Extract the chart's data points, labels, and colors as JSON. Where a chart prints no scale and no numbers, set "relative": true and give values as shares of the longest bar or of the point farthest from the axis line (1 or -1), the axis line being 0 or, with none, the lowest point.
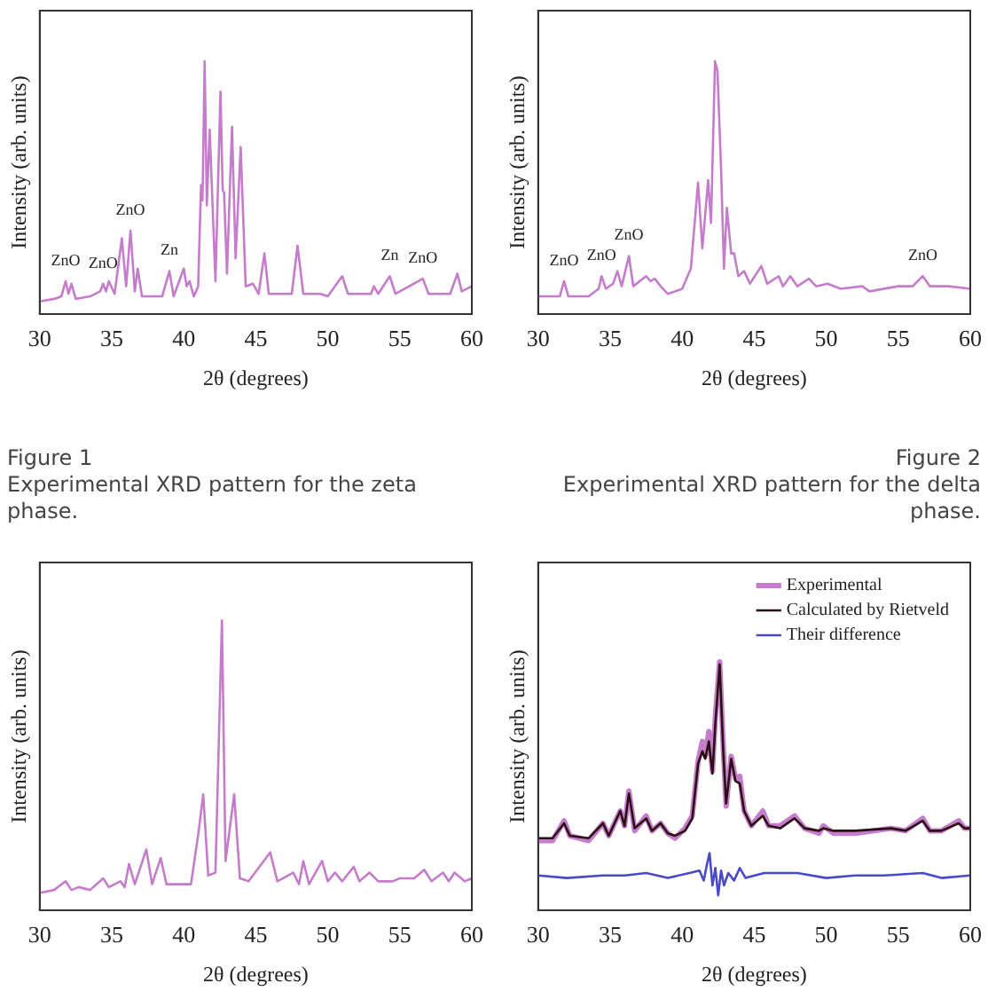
{
  "chart_data": [
    {
      "type": "line",
      "relative": true,
      "xlabel": "2θ (degrees)",
      "ylabel": "Intensity (arb. units)",
      "xlim": [
        30,
        60
      ],
      "xticks": [
        30,
        35,
        40,
        45,
        50,
        55,
        60
      ],
      "grid": false,
      "legend": false,
      "annotations": [
        "Figure 1",
        "Experimental XRD pattern for the zeta phase.",
        {
          "text": "ZnO",
          "x": 31.8,
          "y": 0.13
        },
        {
          "text": "ZnO",
          "x": 34.4,
          "y": 0.12
        },
        {
          "text": "ZnO",
          "x": 36.3,
          "y": 0.33
        },
        {
          "text": "Zn",
          "x": 39.0,
          "y": 0.17
        },
        {
          "text": "Zn",
          "x": 54.3,
          "y": 0.15
        },
        {
          "text": "ZnO",
          "x": 56.6,
          "y": 0.14
        }
      ],
      "series": [
        {
          "color": "#c47ccb",
          "x": [
            30.0,
            31.0,
            31.5,
            31.8,
            32.0,
            32.2,
            32.5,
            33.5,
            34.2,
            34.4,
            34.6,
            34.8,
            35.2,
            35.7,
            36.0,
            36.3,
            36.6,
            36.8,
            37.1,
            38.5,
            39.0,
            39.3,
            40.0,
            40.2,
            40.4,
            40.7,
            41.0,
            41.2,
            41.3,
            41.45,
            41.6,
            41.8,
            42.0,
            42.2,
            42.55,
            42.7,
            42.8,
            43.0,
            43.35,
            43.6,
            43.95,
            44.3,
            44.8,
            45.2,
            45.6,
            45.9,
            47.5,
            47.9,
            48.3,
            49.5,
            50.0,
            51.0,
            51.4,
            53.0,
            53.2,
            53.5,
            54.3,
            54.7,
            56.6,
            57.0,
            58.5,
            59.0,
            59.3,
            60.0
          ],
          "values": [
            0.05,
            0.06,
            0.07,
            0.13,
            0.08,
            0.12,
            0.06,
            0.07,
            0.09,
            0.12,
            0.09,
            0.13,
            0.08,
            0.3,
            0.11,
            0.33,
            0.09,
            0.18,
            0.07,
            0.07,
            0.17,
            0.07,
            0.18,
            0.11,
            0.13,
            0.07,
            0.11,
            0.51,
            0.45,
            1.0,
            0.43,
            0.73,
            0.43,
            0.13,
            0.88,
            0.49,
            0.48,
            0.16,
            0.74,
            0.22,
            0.66,
            0.11,
            0.12,
            0.08,
            0.24,
            0.08,
            0.08,
            0.27,
            0.08,
            0.08,
            0.07,
            0.15,
            0.08,
            0.08,
            0.11,
            0.08,
            0.15,
            0.08,
            0.14,
            0.08,
            0.08,
            0.16,
            0.09,
            0.11
          ]
        }
      ]
    },
    {
      "type": "line",
      "relative": true,
      "xlabel": "2θ (degrees)",
      "ylabel": "Intensity (arb. units)",
      "xlim": [
        30,
        60
      ],
      "xticks": [
        30,
        35,
        40,
        45,
        50,
        55,
        60
      ],
      "grid": false,
      "legend": false,
      "annotations": [
        "Figure 2",
        "Experimental XRD pattern for the delta phase.",
        {
          "text": "ZnO",
          "x": 31.8,
          "y": 0.13
        },
        {
          "text": "ZnO",
          "x": 34.4,
          "y": 0.15
        },
        {
          "text": "ZnO",
          "x": 36.3,
          "y": 0.23
        },
        {
          "text": "ZnO",
          "x": 56.7,
          "y": 0.15
        }
      ],
      "series": [
        {
          "color": "#c47ccb",
          "x": [
            30.0,
            31.0,
            31.5,
            31.8,
            32.1,
            33.5,
            34.2,
            34.4,
            34.7,
            35.2,
            35.5,
            35.8,
            36.3,
            36.6,
            37.5,
            37.8,
            38.1,
            38.5,
            39.0,
            40.0,
            40.6,
            41.1,
            41.4,
            41.8,
            42.0,
            42.28,
            42.45,
            42.7,
            42.9,
            43.1,
            43.4,
            43.6,
            43.9,
            44.3,
            44.7,
            45.5,
            45.9,
            46.7,
            47.0,
            47.5,
            48.0,
            48.8,
            49.3,
            50.1,
            51.0,
            52.5,
            53.0,
            55.0,
            56.0,
            56.7,
            57.2,
            58.5,
            60.0
          ],
          "values": [
            0.07,
            0.07,
            0.07,
            0.13,
            0.07,
            0.07,
            0.1,
            0.15,
            0.1,
            0.12,
            0.17,
            0.11,
            0.23,
            0.11,
            0.15,
            0.13,
            0.14,
            0.11,
            0.08,
            0.1,
            0.18,
            0.52,
            0.26,
            0.53,
            0.36,
            1.0,
            0.96,
            0.57,
            0.18,
            0.42,
            0.24,
            0.24,
            0.15,
            0.17,
            0.12,
            0.19,
            0.12,
            0.15,
            0.11,
            0.15,
            0.11,
            0.14,
            0.11,
            0.12,
            0.1,
            0.11,
            0.09,
            0.11,
            0.11,
            0.15,
            0.11,
            0.11,
            0.1
          ]
        }
      ]
    },
    {
      "type": "line",
      "relative": true,
      "xlabel": "2θ (degrees)",
      "ylabel": "Intensity (arb. units)",
      "xlim": [
        30,
        60
      ],
      "xticks": [
        30,
        35,
        40,
        45,
        50,
        55,
        60
      ],
      "grid": false,
      "legend": false,
      "series": [
        {
          "color": "#c47ccb",
          "x": [
            30.0,
            31.0,
            31.8,
            32.2,
            32.7,
            33.5,
            34.4,
            34.8,
            35.6,
            35.9,
            36.2,
            36.6,
            37.4,
            37.8,
            38.4,
            38.8,
            40.5,
            41.0,
            41.35,
            41.7,
            42.2,
            42.65,
            42.9,
            43.5,
            43.9,
            44.5,
            46.0,
            46.5,
            47.6,
            48.0,
            48.3,
            48.7,
            49.6,
            50.0,
            50.5,
            51.0,
            51.8,
            52.2,
            52.9,
            53.5,
            54.5,
            55.0,
            56.0,
            56.7,
            57.2,
            58.0,
            58.4,
            58.8,
            59.5,
            60.0
          ],
          "values": [
            0.06,
            0.07,
            0.1,
            0.07,
            0.08,
            0.07,
            0.11,
            0.08,
            0.1,
            0.08,
            0.16,
            0.09,
            0.21,
            0.09,
            0.18,
            0.09,
            0.09,
            0.26,
            0.4,
            0.12,
            0.13,
            1.0,
            0.17,
            0.4,
            0.11,
            0.1,
            0.2,
            0.1,
            0.13,
            0.09,
            0.17,
            0.09,
            0.17,
            0.1,
            0.13,
            0.1,
            0.15,
            0.1,
            0.13,
            0.1,
            0.1,
            0.11,
            0.11,
            0.14,
            0.1,
            0.13,
            0.1,
            0.13,
            0.1,
            0.11
          ]
        }
      ]
    },
    {
      "type": "line",
      "relative": true,
      "xlabel": "2θ (degrees)",
      "ylabel": "Intensity (arb. units)",
      "xlim": [
        30,
        60
      ],
      "xticks": [
        30,
        35,
        40,
        45,
        50,
        55,
        60
      ],
      "grid": false,
      "legend": "top right",
      "series": [
        {
          "name": "Experimental",
          "color": "#c47ccb",
          "x": [
            30.0,
            31.0,
            31.8,
            32.2,
            33.5,
            34.5,
            34.9,
            35.7,
            36.0,
            36.3,
            36.7,
            37.5,
            37.9,
            38.5,
            39.0,
            39.5,
            40.2,
            40.7,
            41.1,
            41.4,
            41.6,
            41.85,
            42.1,
            42.3,
            42.6,
            42.85,
            43.05,
            43.4,
            43.7,
            44.0,
            44.3,
            44.8,
            45.6,
            46.0,
            46.8,
            47.8,
            48.5,
            49.5,
            49.8,
            50.5,
            52.0,
            54.5,
            55.5,
            56.7,
            57.2,
            58.0,
            59.2,
            59.6,
            60.0
          ],
          "values": [
            0.28,
            0.28,
            0.36,
            0.3,
            0.28,
            0.35,
            0.3,
            0.4,
            0.34,
            0.48,
            0.32,
            0.38,
            0.32,
            0.35,
            0.31,
            0.29,
            0.33,
            0.38,
            0.6,
            0.68,
            0.62,
            0.72,
            0.56,
            0.78,
            1.0,
            0.66,
            0.42,
            0.62,
            0.53,
            0.54,
            0.4,
            0.34,
            0.4,
            0.34,
            0.34,
            0.38,
            0.33,
            0.31,
            0.34,
            0.31,
            0.31,
            0.33,
            0.32,
            0.37,
            0.32,
            0.32,
            0.36,
            0.33,
            0.33
          ]
        },
        {
          "name": "Calculated by Rietveld",
          "color": "#2a1012",
          "x": [
            30.0,
            31.0,
            31.8,
            32.2,
            33.5,
            34.5,
            34.9,
            35.7,
            36.0,
            36.3,
            36.7,
            37.5,
            37.9,
            38.5,
            39.0,
            39.5,
            40.2,
            40.7,
            41.1,
            41.4,
            41.6,
            41.85,
            42.1,
            42.3,
            42.6,
            42.85,
            43.05,
            43.4,
            43.7,
            44.0,
            44.3,
            44.8,
            45.6,
            46.0,
            46.8,
            47.8,
            48.5,
            49.5,
            49.8,
            50.5,
            52.0,
            54.5,
            55.5,
            56.7,
            57.2,
            58.0,
            59.2,
            59.6,
            60.0
          ],
          "values": [
            0.29,
            0.29,
            0.35,
            0.3,
            0.29,
            0.35,
            0.3,
            0.4,
            0.34,
            0.47,
            0.33,
            0.37,
            0.32,
            0.35,
            0.31,
            0.3,
            0.32,
            0.37,
            0.59,
            0.64,
            0.61,
            0.68,
            0.55,
            0.75,
            0.99,
            0.64,
            0.43,
            0.61,
            0.52,
            0.51,
            0.4,
            0.34,
            0.38,
            0.34,
            0.33,
            0.37,
            0.33,
            0.32,
            0.33,
            0.32,
            0.32,
            0.33,
            0.32,
            0.36,
            0.32,
            0.32,
            0.35,
            0.33,
            0.33
          ]
        },
        {
          "name": "Their difference",
          "color": "#4a4ac8",
          "x": [
            30,
            32,
            34.5,
            36,
            37.5,
            39,
            40.5,
            41.2,
            41.5,
            41.7,
            41.9,
            42.1,
            42.3,
            42.5,
            42.7,
            42.9,
            43.2,
            43.6,
            44.0,
            44.4,
            45.7,
            48,
            50,
            52,
            54,
            56.7,
            58,
            60
          ],
          "values": [
            0.14,
            0.13,
            0.14,
            0.14,
            0.15,
            0.13,
            0.15,
            0.16,
            0.12,
            0.18,
            0.23,
            0.1,
            0.17,
            0.06,
            0.16,
            0.1,
            0.15,
            0.12,
            0.17,
            0.13,
            0.15,
            0.15,
            0.13,
            0.14,
            0.14,
            0.15,
            0.13,
            0.14
          ]
        }
      ]
    }
  ]
}
